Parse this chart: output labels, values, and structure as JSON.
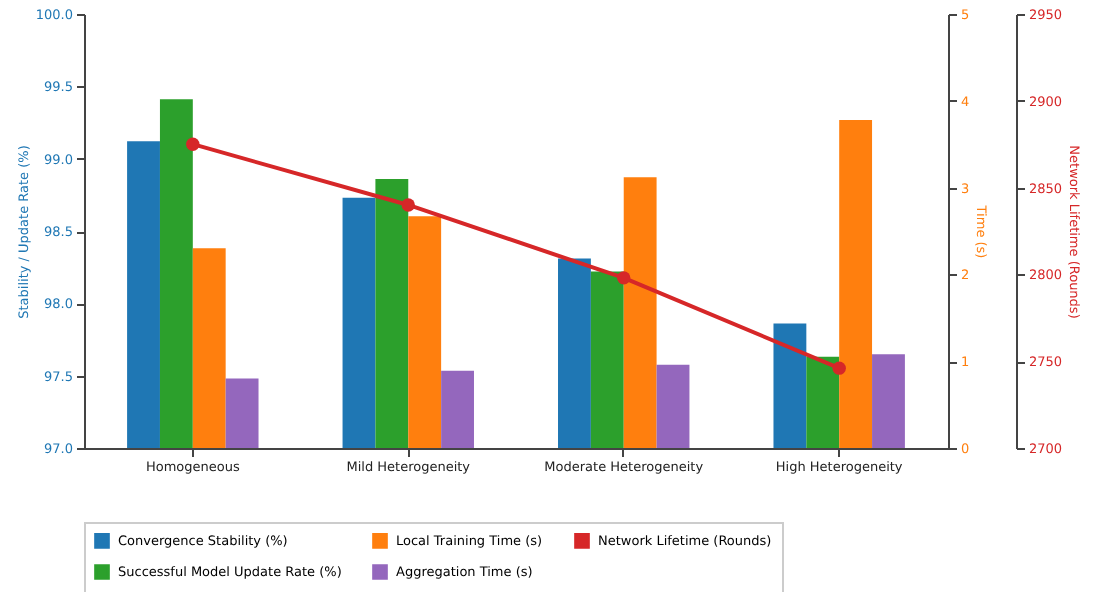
{
  "chart_data": {
    "type": "bar",
    "ylabel": "Stability / Update Rate (%)",
    "y2label": "Time (s)",
    "y3label": "Network Lifetime (Rounds)",
    "categories": [
      "Homogeneous",
      "Mild Heterogeneity",
      "Moderate Heterogeneity",
      "High Heterogeneity"
    ],
    "series": [
      {
        "name": "Convergence Stability (%)",
        "color": "#1f77b4",
        "axis": "y",
        "values": [
          99.12,
          98.73,
          98.31,
          97.86
        ]
      },
      {
        "name": "Successful Model Update Rate (%)",
        "color": "#2ca02c",
        "axis": "y",
        "values": [
          99.41,
          98.86,
          98.22,
          97.63
        ]
      },
      {
        "name": "Local Training Time (s)",
        "color": "#ff7f0e",
        "axis": "y2",
        "values": [
          2.3,
          2.67,
          3.12,
          3.78
        ]
      },
      {
        "name": "Aggregation Time (s)",
        "color": "#9467bd",
        "axis": "y2",
        "values": [
          0.8,
          0.89,
          0.96,
          1.08
        ]
      },
      {
        "name": "Network Lifetime (Rounds)",
        "color": "#d62728",
        "axis": "y3",
        "type": "line",
        "values": [
          2875,
          2840,
          2798,
          2746
        ]
      }
    ],
    "ylim": [
      97,
      100
    ],
    "yticks": [
      {
        "value": 97,
        "label": "97.0"
      },
      {
        "value": 97.5,
        "label": "97.5"
      },
      {
        "value": 98,
        "label": "98.0"
      },
      {
        "value": 98.5,
        "label": "98.5"
      },
      {
        "value": 99,
        "label": "99.0"
      },
      {
        "value": 99.5,
        "label": "99.5"
      },
      {
        "value": 100,
        "label": "100.0"
      }
    ],
    "y2lim": [
      0,
      5
    ],
    "y2ticks": [
      0,
      1,
      2,
      3,
      4,
      5
    ],
    "y3lim": [
      2700,
      2950
    ],
    "y3ticks": [
      2700,
      2750,
      2800,
      2850,
      2900,
      2950
    ],
    "grid": false,
    "legend": "bottom",
    "marker": "circle",
    "line_style": "solid"
  }
}
